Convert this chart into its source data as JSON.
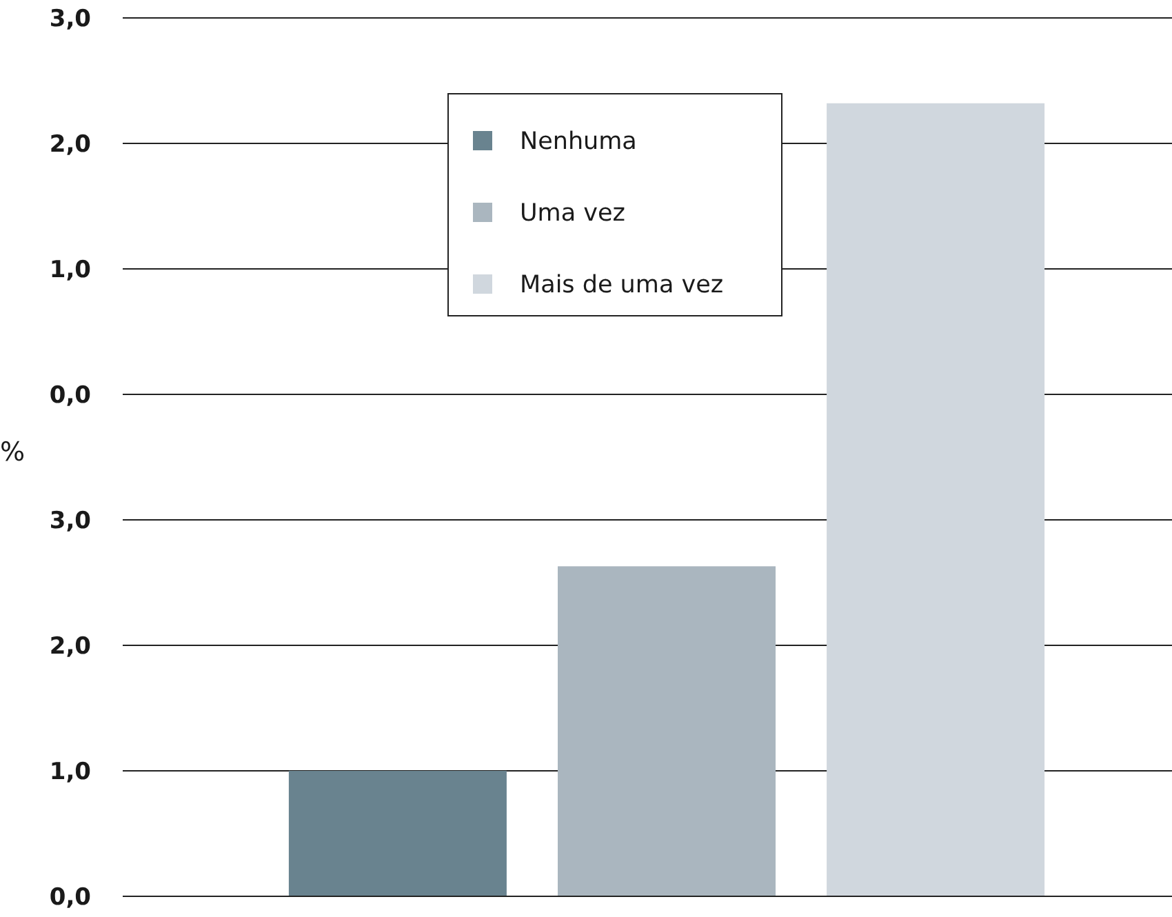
{
  "chart_data": {
    "type": "bar",
    "categories": [
      null
    ],
    "series": [
      {
        "name": "Nenhuma",
        "color": "#69838f",
        "values": [
          1.0
        ]
      },
      {
        "name": "Uma vez",
        "color": "#aab6bf",
        "values": [
          2.63
        ]
      },
      {
        "name": "Mais de uma vez",
        "color": "#d0d7de",
        "values": [
          6.32
        ]
      }
    ],
    "y2label": "%",
    "ylim": [
      0,
      7
    ],
    "yticks": [
      {
        "value": 0,
        "label": "0,0"
      },
      {
        "value": 1,
        "label": "1,0"
      },
      {
        "value": 2,
        "label": "2,0"
      },
      {
        "value": 3,
        "label": "3,0"
      }
    ],
    "y2lim": [
      -4,
      3
    ],
    "y2ticks": [
      {
        "value": 0,
        "label": "0,0"
      },
      {
        "value": 1,
        "label": "1,0"
      },
      {
        "value": 2,
        "label": "2,0"
      },
      {
        "value": 3,
        "label": "3,0"
      }
    ],
    "grid": true,
    "legend": "top"
  }
}
